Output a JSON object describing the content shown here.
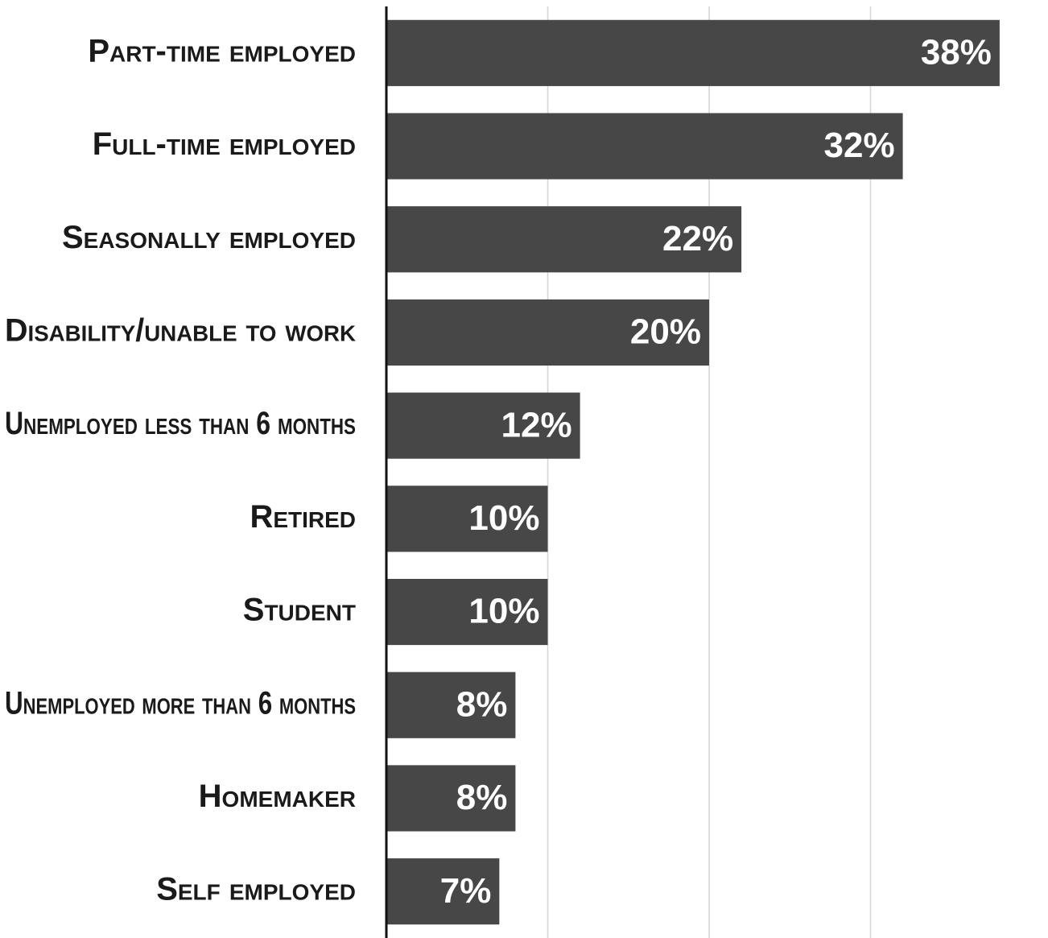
{
  "chart_data": {
    "type": "bar",
    "orientation": "horizontal",
    "categories": [
      "Part-time employed",
      "Full-time employed",
      "Seasonally employed",
      "Disability/unable to work",
      "Unemployed less than 6 months",
      "Retired",
      "Student",
      "Unemployed more than 6 months",
      "Homemaker",
      "Self employed"
    ],
    "values": [
      38,
      32,
      22,
      20,
      12,
      10,
      10,
      8,
      8,
      7
    ],
    "value_labels": [
      "38%",
      "32%",
      "22%",
      "20%",
      "12%",
      "10%",
      "10%",
      "8%",
      "8%",
      "7%"
    ],
    "xlim": [
      0,
      40
    ],
    "gridlines_at": [
      10,
      20,
      30
    ],
    "grid": true,
    "tick_labels_visible": false,
    "bar_color": "#474747",
    "value_label_color": "#ffffff"
  }
}
